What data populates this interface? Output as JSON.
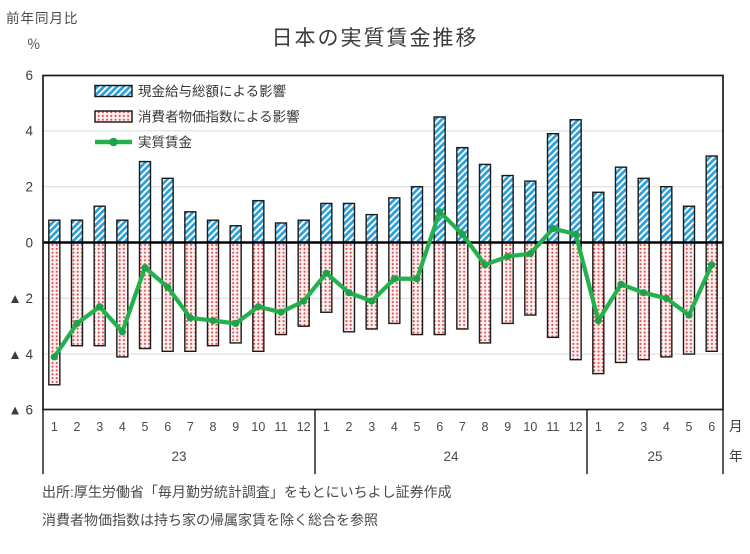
{
  "header": {
    "yoy_label": "前年同月比",
    "unit_label": "％",
    "title": "日本の実質賃金推移"
  },
  "legend": [
    {
      "key": "cash-earnings",
      "label": "現金給与総額による影響"
    },
    {
      "key": "cpi",
      "label": "消費者物価指数による影響"
    },
    {
      "key": "real-wage",
      "label": "実質賃金"
    }
  ],
  "axis": {
    "y_ticks": [
      {
        "label": "6",
        "value": 6
      },
      {
        "label": "4",
        "value": 4
      },
      {
        "label": "2",
        "value": 2
      },
      {
        "label": "0",
        "value": 0
      },
      {
        "label": "▲ 2",
        "value": -2
      },
      {
        "label": "▲ 4",
        "value": -4
      },
      {
        "label": "▲ 6",
        "value": -6
      }
    ],
    "month_unit": "月",
    "year_unit": "年",
    "negative_prefix": "▲"
  },
  "footer": {
    "line1": "出所:厚生労働省「毎月勤労統計調査」をもとにいちよし証券作成",
    "line2": "消費者物価指数は持ち家の帰属家賃を除く総合を参照"
  },
  "colors": {
    "bar_cash_stripe": "#2b9fd9",
    "bar_cpi_dot": "#e04f4f",
    "bar_cpi_bg": "#fdf1f1",
    "real_wage": "#22b14c",
    "real_wage_marker": "#1ea24a",
    "grid": "#d9d9d9",
    "axis": "#1a1a1a"
  },
  "chart_data": {
    "type": "bar+line",
    "title": "日本の実質賃金推移",
    "ylabel": "前年同月比 ％",
    "ylim": [
      -6,
      6
    ],
    "ytick_step": 2,
    "grid": true,
    "legend_position": "top-left-inside",
    "groups": [
      {
        "year": "23",
        "months": [
          "1",
          "2",
          "3",
          "4",
          "5",
          "6",
          "7",
          "8",
          "9",
          "10",
          "11",
          "12"
        ]
      },
      {
        "year": "24",
        "months": [
          "1",
          "2",
          "3",
          "4",
          "5",
          "6",
          "7",
          "8",
          "9",
          "10",
          "11",
          "12"
        ]
      },
      {
        "year": "25",
        "months": [
          "1",
          "2",
          "3",
          "4",
          "5",
          "6"
        ]
      }
    ],
    "series": [
      {
        "name": "現金給与総額による影響",
        "type": "bar",
        "pattern": "blue-diagonal-hatch",
        "values": [
          0.8,
          0.8,
          1.3,
          0.8,
          2.9,
          2.3,
          1.1,
          0.8,
          0.6,
          1.5,
          0.7,
          0.8,
          1.4,
          1.4,
          1.0,
          1.6,
          2.0,
          4.5,
          3.4,
          2.8,
          2.4,
          2.2,
          3.9,
          4.4,
          1.8,
          2.7,
          2.3,
          2.0,
          1.3,
          3.1
        ]
      },
      {
        "name": "消費者物価指数による影響",
        "type": "bar",
        "pattern": "red-dots-on-pink",
        "values": [
          -5.1,
          -3.7,
          -3.7,
          -4.1,
          -3.8,
          -3.9,
          -3.9,
          -3.7,
          -3.6,
          -3.9,
          -3.3,
          -3.0,
          -2.5,
          -3.2,
          -3.1,
          -2.9,
          -3.3,
          -3.3,
          -3.1,
          -3.6,
          -2.9,
          -2.6,
          -3.4,
          -4.2,
          -4.7,
          -4.3,
          -4.2,
          -4.1,
          -4.0,
          -3.9
        ]
      },
      {
        "name": "実質賃金",
        "type": "line",
        "pattern": "solid-green-with-markers",
        "values": [
          -4.1,
          -2.9,
          -2.3,
          -3.2,
          -0.9,
          -1.6,
          -2.7,
          -2.8,
          -2.9,
          -2.3,
          -2.5,
          -2.1,
          -1.1,
          -1.8,
          -2.1,
          -1.3,
          -1.3,
          1.1,
          0.3,
          -0.8,
          -0.5,
          -0.4,
          0.5,
          0.3,
          -2.8,
          -1.5,
          -1.8,
          -2.0,
          -2.6,
          -0.8
        ]
      }
    ]
  }
}
